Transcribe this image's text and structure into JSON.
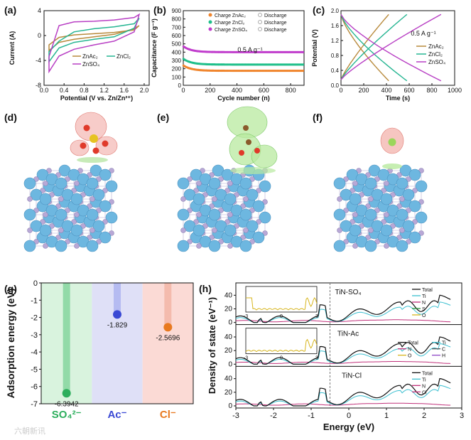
{
  "panel_labels": {
    "a": "(a)",
    "b": "(b)",
    "c": "(c)",
    "d": "(d)",
    "e": "(e)",
    "f": "(f)",
    "g": "(g)",
    "h": "(h)"
  },
  "colors": {
    "znac": "#b88a3c",
    "zncl": "#26b592",
    "znso": "#b83fc4",
    "orange": "#f0852d",
    "green": "#1fbf8a",
    "purple": "#c03ccc",
    "atom_ti": "#6db7e0",
    "atom_n": "#b8a8d6",
    "o_red": "#e03a2a",
    "s_yel": "#e6c321",
    "c_brown": "#8a5a2b",
    "cl_green": "#9bd65a"
  },
  "chart_data": [
    {
      "id": "a",
      "type": "line",
      "title": "",
      "xlabel": "Potential (V vs. Zn/Zn²⁺)",
      "ylabel": "Current (A)",
      "xlim": [
        0,
        2.1
      ],
      "ylim": [
        -8,
        4
      ],
      "xticks": [
        "0.0",
        "0.4",
        "0.8",
        "1.2",
        "1.6",
        "2.0"
      ],
      "yticks": [
        "4",
        "0",
        "-4",
        "-8"
      ],
      "legend": [
        "ZnAc₂",
        "ZnCl₂",
        "ZnSO₄"
      ],
      "series": [
        {
          "name": "ZnAc₂",
          "x": [
            0.1,
            0.3,
            0.6,
            1.0,
            1.4,
            1.8,
            1.9,
            1.8,
            1.4,
            1.0,
            0.6,
            0.3,
            0.1
          ],
          "y": [
            -1.5,
            -0.3,
            0.1,
            0.3,
            0.5,
            0.9,
            1.6,
            1.1,
            0.2,
            -0.2,
            -0.6,
            -1.1,
            -2.4
          ]
        },
        {
          "name": "ZnCl₂",
          "x": [
            0.1,
            0.3,
            0.6,
            1.0,
            1.4,
            1.8,
            1.9,
            1.8,
            1.4,
            1.0,
            0.6,
            0.3,
            0.1
          ],
          "y": [
            -2.6,
            -0.9,
            0.6,
            1.1,
            1.4,
            1.9,
            2.8,
            1.2,
            -0.2,
            -0.6,
            -1.1,
            -2.0,
            -4.2
          ]
        },
        {
          "name": "ZnSO₄",
          "x": [
            0.1,
            0.3,
            0.6,
            1.0,
            1.4,
            1.8,
            1.9,
            1.8,
            1.4,
            1.0,
            0.6,
            0.3,
            0.1
          ],
          "y": [
            -3.4,
            1.6,
            2.2,
            2.3,
            2.5,
            2.9,
            3.4,
            0.6,
            -0.9,
            -1.5,
            -2.2,
            -3.3,
            -5.8
          ]
        }
      ]
    },
    {
      "id": "b",
      "type": "scatter",
      "xlabel": "Cycle number (n)",
      "ylabel": "Capacitance (F g⁻¹)",
      "xlim": [
        0,
        900
      ],
      "ylim": [
        0,
        900
      ],
      "xticks": [
        "0",
        "200",
        "400",
        "600",
        "800"
      ],
      "yticks": [
        "0",
        "100",
        "200",
        "300",
        "400",
        "500",
        "600",
        "700",
        "800",
        "900"
      ],
      "annotation": "0.5 A g⁻¹",
      "legend": [
        [
          "Charge ZnAc₂",
          "Discharge"
        ],
        [
          "Charge ZnCl₂",
          "Discharge"
        ],
        [
          "Charge ZnSO₄",
          "Discharge"
        ]
      ],
      "series": [
        {
          "name": "Charge ZnSO₄",
          "start": 470,
          "end": 400
        },
        {
          "name": "Charge ZnCl₂",
          "start": 320,
          "end": 250
        },
        {
          "name": "Charge ZnAc₂",
          "start": 240,
          "end": 175
        }
      ]
    },
    {
      "id": "c",
      "type": "line",
      "xlabel": "Time (s)",
      "ylabel": "Potential (V)",
      "xlim": [
        0,
        1000
      ],
      "ylim": [
        0,
        2.0
      ],
      "xticks": [
        "0",
        "200",
        "400",
        "600",
        "800",
        "1000"
      ],
      "yticks": [
        "0.0",
        "0.4",
        "0.8",
        "1.2",
        "1.6",
        "2.0"
      ],
      "annotation": "0.5 A g⁻¹",
      "legend": [
        "ZnAc₂",
        "ZnCl₂",
        "ZnSO₄"
      ],
      "series": [
        {
          "name": "ZnAc₂",
          "charge_end": 420,
          "discharge_end": 420
        },
        {
          "name": "ZnCl₂",
          "charge_end": 580,
          "discharge_end": 580
        },
        {
          "name": "ZnSO₄",
          "charge_end": 880,
          "discharge_end": 880
        }
      ]
    },
    {
      "id": "g",
      "type": "bar",
      "ylabel": "Adsorption energy (eV)",
      "ylim": [
        -7,
        0
      ],
      "yticks": [
        "0",
        "-1",
        "-2",
        "-3",
        "-4",
        "-5",
        "-6",
        "-7"
      ],
      "categories": [
        "SO₄²⁻",
        "Ac⁻",
        "Cl⁻"
      ],
      "values": [
        -6.3942,
        -1.829,
        -2.5696
      ],
      "value_labels": [
        "-6.3942",
        "-1.829",
        "-2.5696"
      ]
    },
    {
      "id": "h",
      "type": "line",
      "xlabel": "Energy (eV)",
      "ylabel": "Density of state (eV⁻¹)",
      "xlim": [
        -3,
        3
      ],
      "xticks": [
        "-3",
        "-2",
        "-1",
        "0",
        "1",
        "2",
        "3"
      ],
      "yticks": [
        "0",
        "20",
        "40"
      ],
      "panels": [
        {
          "title": "TiN-SO₄",
          "legend": [
            "Total",
            "Ti",
            "N",
            "S",
            "O"
          ]
        },
        {
          "title": "TiN-Ac",
          "legend": [
            "Total",
            "Ti",
            "N",
            "C",
            "O",
            "H"
          ]
        },
        {
          "title": "TiN-Cl",
          "legend": [
            "Total",
            "Ti",
            "N",
            "Cl"
          ]
        }
      ],
      "inset_xticks": [
        "-3",
        "0",
        "3"
      ]
    }
  ],
  "watermark": "六朝新讯"
}
